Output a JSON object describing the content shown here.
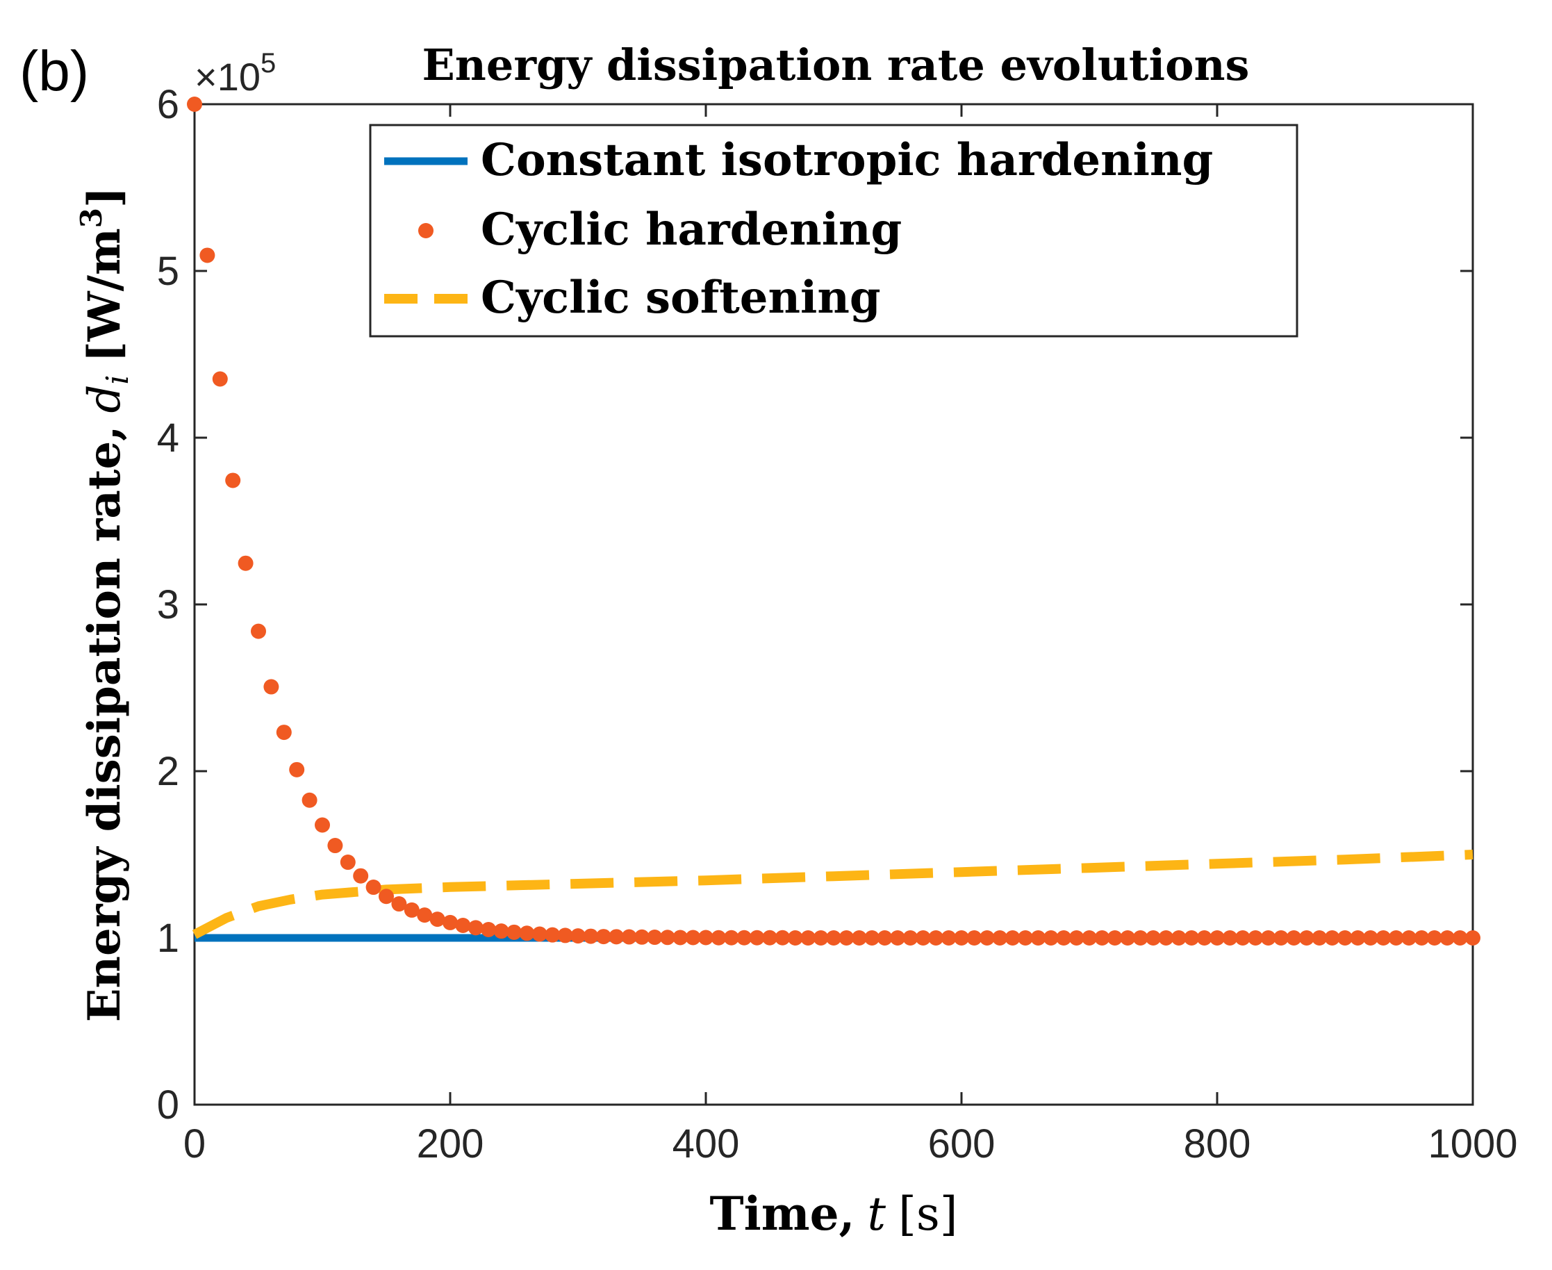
{
  "panel_label": "(b)",
  "chart_data": {
    "type": "line",
    "title": "Energy dissipation rate evolutions",
    "xlabel": {
      "text": "Time,",
      "symbol": "t",
      "unit": "[s]"
    },
    "ylabel": {
      "text": "Energy dissipation rate,",
      "symbol": "d",
      "subscript": "i",
      "unit_open": "[W/m",
      "unit_sup": "3",
      "unit_close": "]"
    },
    "y_multiplier": {
      "base": "×10",
      "exponent": "5"
    },
    "xlim": [
      0,
      1000
    ],
    "ylim": [
      0,
      6
    ],
    "x_ticks": [
      0,
      200,
      400,
      600,
      800,
      1000
    ],
    "y_ticks": [
      0,
      1,
      2,
      3,
      4,
      5,
      6
    ],
    "grid": false,
    "legend_position": "top-center",
    "series": [
      {
        "name": "Constant isotropic hardening",
        "style": "solid",
        "color": "#0072BD",
        "x": [
          0,
          1000
        ],
        "y": [
          1.0,
          1.0
        ]
      },
      {
        "name": "Cyclic hardening",
        "style": "dots",
        "color": "#F05A22",
        "model": {
          "form": "y = 1 + a*exp(-x/tau)",
          "a": 5.0,
          "tau": 50,
          "x_step": 10
        },
        "x": [
          0,
          10,
          20,
          30,
          40,
          50,
          60,
          70,
          80,
          90,
          100,
          110,
          120,
          130,
          140,
          150,
          160,
          170,
          180,
          190,
          200,
          210,
          220,
          230,
          240,
          250,
          260,
          270,
          280,
          290,
          300,
          310,
          320,
          330,
          340,
          350,
          360,
          370,
          380,
          390,
          400,
          410,
          420,
          430,
          440,
          450,
          460,
          470,
          480,
          490,
          500,
          510,
          520,
          530,
          540,
          550,
          560,
          570,
          580,
          590,
          600,
          610,
          620,
          630,
          640,
          650,
          660,
          670,
          680,
          690,
          700,
          710,
          720,
          730,
          740,
          750,
          760,
          770,
          780,
          790,
          800,
          810,
          820,
          830,
          840,
          850,
          860,
          870,
          880,
          890,
          900,
          910,
          920,
          930,
          940,
          950,
          960,
          970,
          980,
          990,
          1000
        ],
        "y": [
          6.0,
          5.094,
          4.352,
          3.744,
          3.247,
          2.839,
          2.506,
          2.233,
          2.009,
          1.826,
          1.677,
          1.554,
          1.454,
          1.372,
          1.304,
          1.249,
          1.204,
          1.167,
          1.137,
          1.112,
          1.092,
          1.075,
          1.061,
          1.05,
          1.041,
          1.034,
          1.028,
          1.023,
          1.018,
          1.015,
          1.012,
          1.01,
          1.008,
          1.007,
          1.006,
          1.005,
          1.004,
          1.003,
          1.002,
          1.002,
          1.002,
          1.001,
          1.001,
          1.001,
          1.001,
          1.001,
          1.001,
          1.0,
          1.0,
          1.0,
          1.0,
          1.0,
          1.0,
          1.0,
          1.0,
          1.0,
          1.0,
          1.0,
          1.0,
          1.0,
          1.0,
          1.0,
          1.0,
          1.0,
          1.0,
          1.0,
          1.0,
          1.0,
          1.0,
          1.0,
          1.0,
          1.0,
          1.0,
          1.0,
          1.0,
          1.0,
          1.0,
          1.0,
          1.0,
          1.0,
          1.0,
          1.0,
          1.0,
          1.0,
          1.0,
          1.0,
          1.0,
          1.0,
          1.0,
          1.0,
          1.0,
          1.0,
          1.0,
          1.0,
          1.0,
          1.0,
          1.0,
          1.0,
          1.0,
          1.0,
          1.0
        ]
      },
      {
        "name": "Cyclic softening",
        "style": "dashed",
        "color": "#FDB515",
        "x": [
          0,
          25,
          50,
          75,
          100,
          150,
          200,
          300,
          400,
          500,
          600,
          700,
          800,
          900,
          1000
        ],
        "y": [
          1.02,
          1.12,
          1.19,
          1.23,
          1.26,
          1.29,
          1.305,
          1.325,
          1.345,
          1.37,
          1.395,
          1.42,
          1.445,
          1.47,
          1.5
        ]
      }
    ]
  }
}
